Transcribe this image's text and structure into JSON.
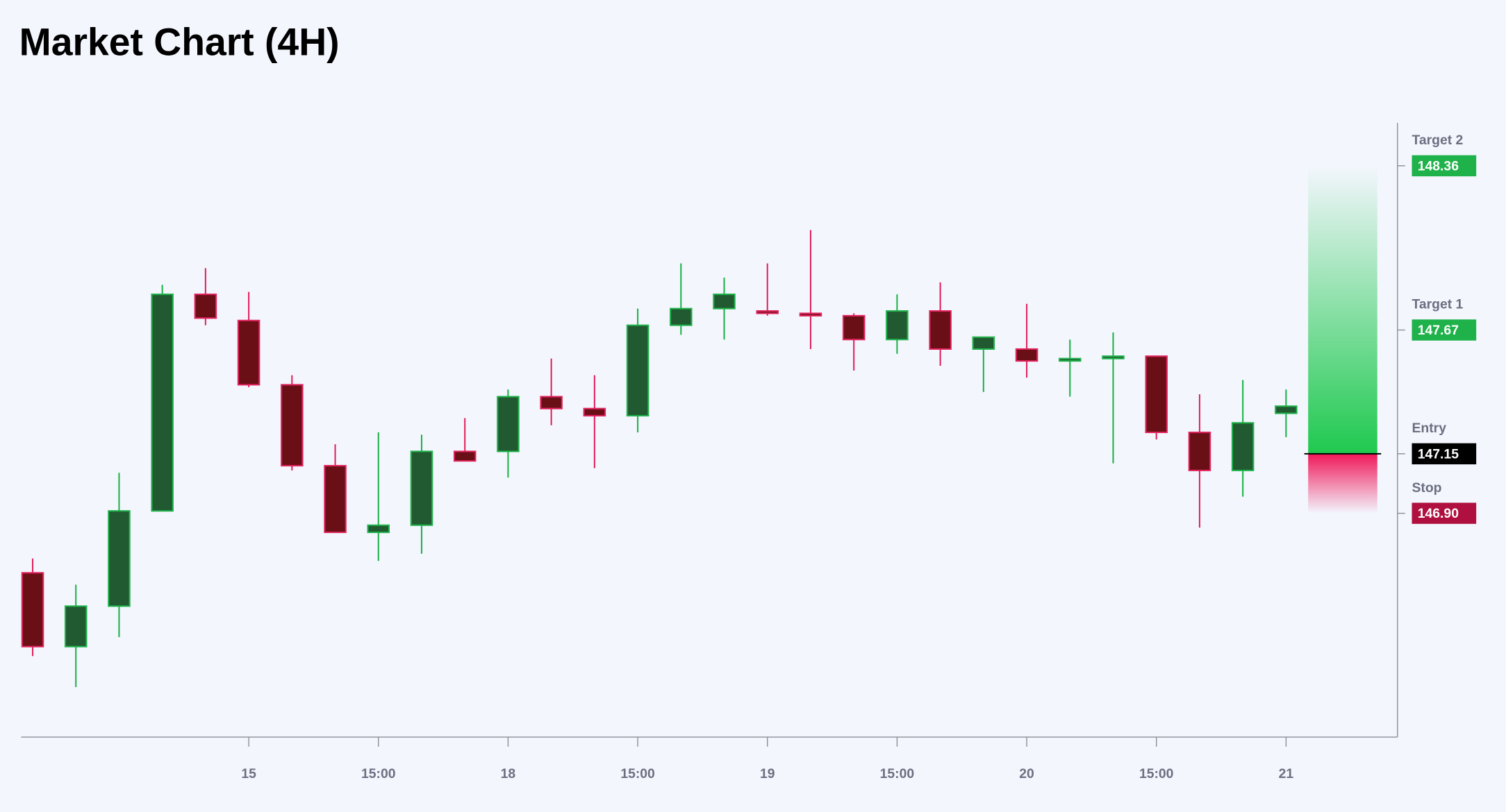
{
  "chart_data": {
    "type": "candlestick",
    "title": "Market Chart (4H)",
    "categories": [
      null,
      null,
      null,
      null,
      null,
      "15",
      null,
      null,
      "15:00",
      null,
      null,
      "18",
      null,
      null,
      "15:00",
      null,
      null,
      "19",
      null,
      null,
      "15:00",
      null,
      null,
      "20",
      null,
      null,
      "15:00",
      null,
      null,
      "21"
    ],
    "open": [
      146.65,
      146.34,
      146.51,
      146.91,
      147.82,
      147.71,
      147.44,
      147.1,
      146.82,
      146.85,
      147.16,
      147.16,
      147.39,
      147.34,
      147.31,
      147.69,
      147.76,
      147.75,
      147.74,
      147.73,
      147.63,
      147.75,
      147.59,
      147.59,
      147.54,
      147.55,
      147.56,
      147.24,
      147.08,
      147.32
    ],
    "high": [
      146.71,
      146.6,
      147.07,
      147.86,
      147.93,
      147.83,
      147.48,
      147.19,
      147.24,
      147.23,
      147.3,
      147.42,
      147.55,
      147.48,
      147.76,
      147.95,
      147.89,
      147.95,
      148.09,
      147.74,
      147.82,
      147.87,
      147.64,
      147.78,
      147.63,
      147.66,
      147.56,
      147.4,
      147.46,
      147.42
    ],
    "low": [
      146.3,
      146.17,
      146.38,
      146.91,
      147.69,
      147.43,
      147.08,
      146.82,
      146.7,
      146.73,
      147.12,
      147.05,
      147.27,
      147.09,
      147.24,
      147.65,
      147.63,
      147.73,
      147.59,
      147.5,
      147.57,
      147.52,
      147.41,
      147.47,
      147.39,
      147.11,
      147.21,
      146.84,
      146.97,
      147.22
    ],
    "close": [
      146.34,
      146.51,
      146.91,
      147.82,
      147.72,
      147.44,
      147.1,
      146.82,
      146.85,
      147.16,
      147.12,
      147.39,
      147.34,
      147.31,
      147.69,
      147.76,
      147.82,
      147.74,
      147.73,
      147.63,
      147.75,
      147.59,
      147.64,
      147.54,
      147.55,
      147.56,
      147.24,
      147.08,
      147.28,
      147.35
    ],
    "up_color": "#1fb24a",
    "down_color": "#e0245e",
    "levels": {
      "names": [
        "Target 2",
        "Target 1",
        "Entry",
        "Stop"
      ],
      "values": [
        148.36,
        147.67,
        147.15,
        146.9
      ],
      "value_labels": [
        "148.36",
        "147.67",
        "147.15",
        "146.90"
      ],
      "colors": [
        "#1fb24a",
        "#1fb24a",
        "#000000",
        "#b0103f"
      ]
    },
    "ylim": [
      145.96,
      148.54
    ]
  }
}
